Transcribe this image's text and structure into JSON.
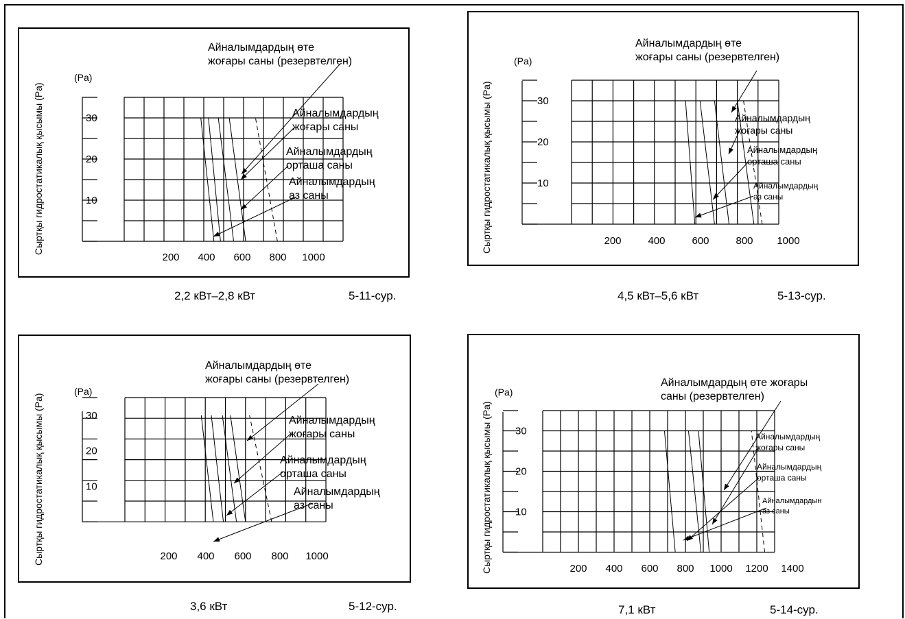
{
  "page_title": "",
  "chart_data": [
    {
      "type": "line",
      "figure_number": "5-11-сур.",
      "caption": "2,2 кВт–2,8 кВт",
      "ylabel": "Сыртқы гидростатикалық қысымы (Pa)",
      "yunit": "(Pa)",
      "y_ticks": [
        "10",
        "20",
        "30"
      ],
      "x_ticks": [
        "200",
        "400",
        "600",
        "800",
        "1000"
      ],
      "xlim": [
        0,
        1000
      ],
      "ylim": [
        0,
        35
      ],
      "grid": true,
      "annotations": [
        {
          "lines": [
            "Айналымдардың өте",
            "жоғары саны (резервтелген)"
          ]
        },
        {
          "lines": [
            "Айналымдардың",
            "жоғары саны"
          ]
        },
        {
          "lines": [
            "Айналымдардың",
            "орташа саны"
          ]
        },
        {
          "lines": [
            "Айналымдардың",
            "аз саны"
          ]
        }
      ],
      "series": [
        {
          "values": [
            [
              410,
              0
            ],
            [
              350,
              30
            ]
          ]
        },
        {
          "values": [
            [
              440,
              0
            ],
            [
              385,
              30
            ]
          ]
        },
        {
          "values": [
            [
              500,
              0
            ],
            [
              430,
              30
            ]
          ]
        },
        {
          "values": [
            [
              555,
              0
            ],
            [
              480,
              30
            ]
          ]
        },
        {
          "values": [
            [
              700,
              0
            ],
            [
              600,
              30
            ]
          ],
          "dashed": true
        }
      ]
    },
    {
      "type": "line",
      "figure_number": "5-12-сур.",
      "caption": "3,6 кВт",
      "ylabel": "Сыртқы гидростатикалық қысымы (Pa)",
      "yunit": "(Pa)",
      "y_ticks": [
        "10",
        "20",
        "30"
      ],
      "x_ticks": [
        "200",
        "400",
        "600",
        "800",
        "1000"
      ],
      "xlim": [
        0,
        1000
      ],
      "ylim": [
        0,
        35
      ],
      "grid": true,
      "annotations": [
        {
          "lines": [
            "Айналымдардың өте",
            "жоғары саны (резервтелген)"
          ]
        },
        {
          "lines": [
            "Айналымдардың",
            "жоғары саны"
          ]
        },
        {
          "lines": [
            "Айналымдардың",
            "орташа саны"
          ]
        },
        {
          "lines": [
            "Айналымдардың",
            "аз саны"
          ]
        }
      ],
      "series": [
        {
          "values": [
            [
              440,
              0
            ],
            [
              380,
              30
            ]
          ]
        },
        {
          "values": [
            [
              490,
              0
            ],
            [
              430,
              30
            ]
          ]
        },
        {
          "values": [
            [
              555,
              0
            ],
            [
              485,
              30
            ]
          ]
        },
        {
          "values": [
            [
              600,
              0
            ],
            [
              525,
              30
            ]
          ]
        },
        {
          "values": [
            [
              730,
              0
            ],
            [
              620,
              30
            ]
          ],
          "dashed": true
        }
      ]
    },
    {
      "type": "line",
      "figure_number": "5-13-сур.",
      "caption": "4,5 кВт–5,6 кВт",
      "ylabel": "Сыртқы гидростатикалық қысымы (Pa)",
      "yunit": "(Pa)",
      "y_ticks": [
        "10",
        "20",
        "30"
      ],
      "x_ticks": [
        "200",
        "400",
        "600",
        "800",
        "1000"
      ],
      "xlim": [
        0,
        1000
      ],
      "ylim": [
        0,
        35
      ],
      "grid": true,
      "annotations": [
        {
          "lines": [
            "Айналымдардың өте",
            "жоғары саны (резервтелген)"
          ]
        },
        {
          "lines": [
            "Айналымдардың",
            "жоғары саны"
          ]
        },
        {
          "lines": [
            "Айналымдардың",
            "орташа саны"
          ]
        },
        {
          "lines": [
            "Айналымдардың",
            "аз саны"
          ]
        }
      ],
      "series": [
        {
          "values": [
            [
              595,
              0
            ],
            [
              550,
              30
            ]
          ]
        },
        {
          "values": [
            [
              690,
              0
            ],
            [
              620,
              30
            ]
          ]
        },
        {
          "values": [
            [
              760,
              0
            ],
            [
              690,
              30
            ]
          ]
        },
        {
          "values": [
            [
              880,
              0
            ],
            [
              800,
              30
            ]
          ]
        },
        {
          "values": [
            [
              920,
              0
            ],
            [
              830,
              30
            ]
          ],
          "dashed": true
        }
      ]
    },
    {
      "type": "line",
      "figure_number": "5-14-сур.",
      "caption": "7,1 кВт",
      "ylabel": "Сыртқы гидростатикалық қысымы (Pa)",
      "yunit": "(Pa)",
      "y_ticks": [
        "10",
        "20",
        "30"
      ],
      "x_ticks": [
        "200",
        "400",
        "600",
        "800",
        "1000",
        "1200",
        "1400"
      ],
      "xlim": [
        0,
        1400
      ],
      "ylim": [
        0,
        35
      ],
      "grid": true,
      "annotations": [
        {
          "lines": [
            "Айналымдардың өте жоғары",
            "саны (резервтелген)"
          ]
        },
        {
          "lines": [
            "Айналымдардың",
            "жоғары саны"
          ]
        },
        {
          "lines": [
            "Айналымдардың",
            "орташа саны"
          ]
        },
        {
          "lines": [
            "Айналымдардын",
            "аз саны"
          ]
        }
      ],
      "series": [
        {
          "values": [
            [
              800,
              0
            ],
            [
              735,
              30
            ]
          ]
        },
        {
          "values": [
            [
              955,
              0
            ],
            [
              880,
              30
            ]
          ]
        },
        {
          "values": [
            [
              1005,
              0
            ],
            [
              940,
              30
            ]
          ]
        },
        {
          "values": [
            [
              1340,
              0
            ],
            [
              1260,
              30
            ]
          ],
          "dashed": true
        }
      ]
    }
  ]
}
